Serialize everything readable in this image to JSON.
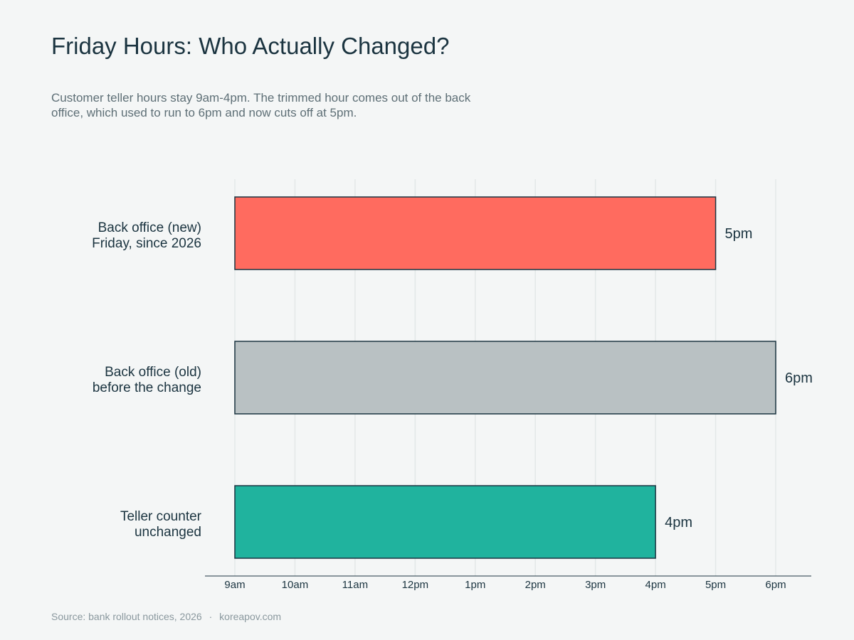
{
  "title": "Friday Hours: Who Actually Changed?",
  "subtitle": "Customer teller hours stay 9am-4pm. The trimmed hour comes out of the back office, which used to run to 6pm and now cuts off at 5pm.",
  "source": {
    "text": "Source: bank rollout notices, 2026",
    "separator": "·",
    "site": "koreapov.com"
  },
  "chart_data": {
    "type": "bar",
    "orientation": "horizontal",
    "x_ticks": [
      "9am",
      "10am",
      "11am",
      "12pm",
      "1pm",
      "2pm",
      "3pm",
      "4pm",
      "5pm",
      "6pm"
    ],
    "xlim": [
      9,
      18
    ],
    "grid": true,
    "categories": [
      {
        "line1": "Back office (new)",
        "line2": "Friday, since 2026",
        "start": 9,
        "end": 17,
        "label": "5pm",
        "color": "#ff6b5f"
      },
      {
        "line1": "Back office (old)",
        "line2": "before the change",
        "start": 9,
        "end": 18,
        "label": "6pm",
        "color": "#b9c1c3"
      },
      {
        "line1": "Teller counter",
        "line2": "unchanged",
        "start": 9,
        "end": 16,
        "label": "4pm",
        "color": "#20b39e"
      }
    ],
    "colors": {
      "axis": "#1b3440",
      "grid": "#e3e8e8",
      "bar_stroke": "#1b3440",
      "text": "#1b3440"
    }
  }
}
